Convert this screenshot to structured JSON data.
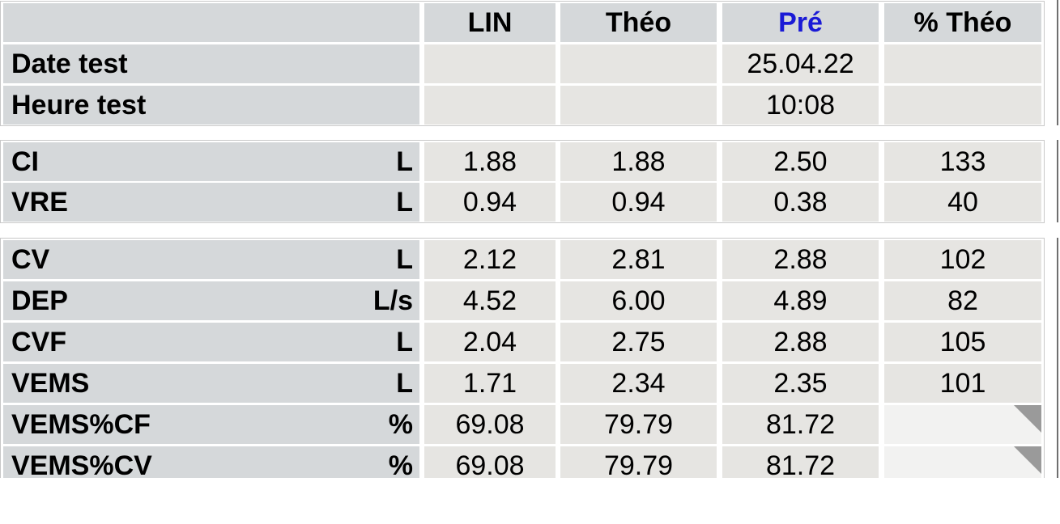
{
  "columns": {
    "lin": "LIN",
    "theo": "Théo",
    "pre": "Pré",
    "pct": "% Théo"
  },
  "header_rows": [
    {
      "label": "Date test",
      "lin": "",
      "theo": "",
      "pre": "25.04.22",
      "pct": ""
    },
    {
      "label": "Heure test",
      "lin": "",
      "theo": "",
      "pre": "10:08",
      "pct": ""
    }
  ],
  "volume_rows": [
    {
      "label": "CI",
      "unit": "L",
      "lin": "1.88",
      "theo": "1.88",
      "pre": "2.50",
      "pct": "133"
    },
    {
      "label": "VRE",
      "unit": "L",
      "lin": "0.94",
      "theo": "0.94",
      "pre": "0.38",
      "pct": "40"
    }
  ],
  "flow_rows": [
    {
      "label": "CV",
      "unit": "L",
      "lin": "2.12",
      "theo": "2.81",
      "pre": "2.88",
      "pct": "102"
    },
    {
      "label": "DEP",
      "unit": "L/s",
      "lin": "4.52",
      "theo": "6.00",
      "pre": "4.89",
      "pct": "82"
    },
    {
      "label": "CVF",
      "unit": "L",
      "lin": "2.04",
      "theo": "2.75",
      "pre": "2.88",
      "pct": "105"
    },
    {
      "label": "VEMS",
      "unit": "L",
      "lin": "1.71",
      "theo": "2.34",
      "pre": "2.35",
      "pct": "101"
    },
    {
      "label": "VEMS%CF",
      "unit": "%",
      "lin": "69.08",
      "theo": "79.79",
      "pre": "81.72",
      "pct": ""
    },
    {
      "label": "VEMS%CV",
      "unit": "%",
      "lin": "69.08",
      "theo": "79.79",
      "pre": "81.72",
      "pct": ""
    }
  ],
  "colors": {
    "header_accent": "#1a1ad6",
    "label_bg": "#d5d8da",
    "value_bg": "#e6e5e2"
  }
}
